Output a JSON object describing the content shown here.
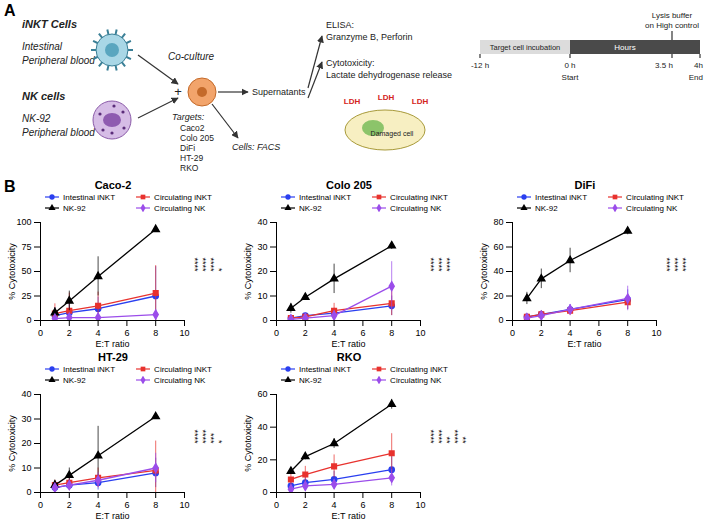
{
  "panel_a": {
    "label": "A",
    "inkt": {
      "title": "iNKT Cells",
      "sources": [
        "Intestinal",
        "Peripheral blood"
      ]
    },
    "nk": {
      "title": "NK cells",
      "sources": [
        "NK-92",
        "Peripheral blood"
      ]
    },
    "coculture": "Co-culture",
    "plus": "+",
    "targets_title": "Targets:",
    "targets": [
      "Caco2",
      "Colo 205",
      "DiFi",
      "HT-29",
      "RKO"
    ],
    "cells": "Cells: FACS",
    "supernatants": "Supernatants",
    "elisa": [
      "ELISA:",
      "Granzyme B, Perforin"
    ],
    "cytotoxicity": [
      "Cytotoxicity:",
      "Lactate dehydrogenase release"
    ],
    "ldh": [
      "LDH",
      "LDH",
      "LDH"
    ],
    "damaged": "Damaged cell",
    "timeline": {
      "incubation": "Target cell incubation",
      "start": "Start",
      "lysis": [
        "Lysis buffer",
        "on High control"
      ],
      "end": "End",
      "axis_label": "Hours",
      "times": [
        "-12 h",
        "0 h",
        "3.5 h",
        "4h"
      ]
    }
  },
  "panel_b_label": "B",
  "chart_data": [
    {
      "type": "line",
      "title": "Caco-2",
      "x_label": "E:T ratio",
      "y_label": "% Cytotoxicity",
      "x": [
        1,
        2,
        4,
        8
      ],
      "xlim": [
        0,
        10
      ],
      "xticks": [
        0,
        2,
        4,
        6,
        8,
        10
      ],
      "ylim": [
        0,
        100
      ],
      "yticks": [
        0,
        25,
        50,
        75,
        100
      ],
      "legend": "top-left",
      "series": [
        {
          "name": "Intestinal iNKT",
          "color": "#2a3ff0",
          "marker": "circle",
          "values": [
            5,
            8,
            12,
            25
          ],
          "errors": [
            8,
            15,
            12,
            30
          ]
        },
        {
          "name": "Circulating iNKT",
          "color": "#e8322e",
          "marker": "square",
          "values": [
            7,
            10,
            15,
            28
          ],
          "errors": [
            10,
            18,
            14,
            28
          ]
        },
        {
          "name": "NK-92",
          "color": "#000000",
          "marker": "triangle",
          "values": [
            8,
            20,
            45,
            93
          ],
          "errors": [
            5,
            10,
            20,
            2
          ]
        },
        {
          "name": "Circulating NK",
          "color": "#9b4dea",
          "marker": "diamond",
          "values": [
            2,
            3,
            3,
            6
          ],
          "errors": [
            2,
            3,
            3,
            5
          ]
        }
      ],
      "significance": [
        "****",
        "****",
        "****",
        "*"
      ]
    },
    {
      "type": "line",
      "title": "Colo 205",
      "x_label": "E:T ratio",
      "y_label": "% Cytotoxicity",
      "x": [
        1,
        2,
        4,
        8
      ],
      "xlim": [
        0,
        10
      ],
      "xticks": [
        0,
        2,
        4,
        6,
        8,
        10
      ],
      "ylim": [
        0,
        40
      ],
      "yticks": [
        0,
        10,
        20,
        30,
        40
      ],
      "legend": "top-left",
      "series": [
        {
          "name": "Intestinal iNKT",
          "color": "#2a3ff0",
          "marker": "circle",
          "values": [
            1,
            2,
            3,
            6
          ],
          "errors": [
            1,
            1,
            2,
            4
          ]
        },
        {
          "name": "Circulating iNKT",
          "color": "#e8322e",
          "marker": "square",
          "values": [
            1,
            1.5,
            4,
            7
          ],
          "errors": [
            1,
            1,
            3,
            5
          ]
        },
        {
          "name": "NK-92",
          "color": "#000000",
          "marker": "triangle",
          "values": [
            5,
            9.5,
            17,
            30.5
          ],
          "errors": [
            2,
            1,
            6,
            1.5
          ]
        },
        {
          "name": "Circulating NK",
          "color": "#9b4dea",
          "marker": "diamond",
          "values": [
            0.5,
            1,
            2,
            14
          ],
          "errors": [
            0.5,
            1,
            2,
            10
          ]
        }
      ],
      "significance": [
        "****",
        "****",
        "****"
      ]
    },
    {
      "type": "line",
      "title": "DiFi",
      "x_label": "E:T ratio",
      "y_label": "% Cytotoxicity",
      "x": [
        1,
        2,
        4,
        8
      ],
      "xlim": [
        0,
        10
      ],
      "xticks": [
        0,
        2,
        4,
        6,
        8,
        10
      ],
      "ylim": [
        0,
        80
      ],
      "yticks": [
        0,
        20,
        40,
        60,
        80
      ],
      "legend": "top-left",
      "series": [
        {
          "name": "Intestinal iNKT",
          "color": "#2a3ff0",
          "marker": "circle",
          "values": [
            3,
            5,
            9,
            17
          ],
          "errors": [
            2,
            3,
            4,
            8
          ]
        },
        {
          "name": "Circulating iNKT",
          "color": "#e8322e",
          "marker": "square",
          "values": [
            3,
            5,
            8,
            15
          ],
          "errors": [
            2,
            3,
            4,
            6
          ]
        },
        {
          "name": "NK-92",
          "color": "#000000",
          "marker": "triangle",
          "values": [
            18,
            34,
            49,
            73
          ],
          "errors": [
            5,
            8,
            10,
            3
          ]
        },
        {
          "name": "Circulating NK",
          "color": "#9b4dea",
          "marker": "diamond",
          "values": [
            2,
            4,
            9,
            18
          ],
          "errors": [
            2,
            3,
            4,
            10
          ]
        }
      ],
      "significance": [
        "****",
        "****",
        "****"
      ]
    },
    {
      "type": "line",
      "title": "HT-29",
      "x_label": "E:T ratio",
      "y_label": "% Cytotoxicity",
      "x": [
        1,
        2,
        4,
        8
      ],
      "xlim": [
        0,
        10
      ],
      "xticks": [
        0,
        2,
        4,
        6,
        8,
        10
      ],
      "ylim": [
        0,
        40
      ],
      "yticks": [
        0,
        10,
        20,
        30,
        40
      ],
      "legend": "top-left",
      "series": [
        {
          "name": "Intestinal iNKT",
          "color": "#2a3ff0",
          "marker": "circle",
          "values": [
            2,
            3,
            4,
            8
          ],
          "errors": [
            1,
            2,
            3,
            6
          ]
        },
        {
          "name": "Circulating iNKT",
          "color": "#e8322e",
          "marker": "square",
          "values": [
            3,
            4,
            6,
            9
          ],
          "errors": [
            2,
            3,
            4,
            12
          ]
        },
        {
          "name": "NK-92",
          "color": "#000000",
          "marker": "triangle",
          "values": [
            3,
            7,
            15,
            31
          ],
          "errors": [
            2,
            3,
            12,
            1
          ]
        },
        {
          "name": "Circulating NK",
          "color": "#9b4dea",
          "marker": "diamond",
          "values": [
            2,
            3,
            5,
            10
          ],
          "errors": [
            1,
            2,
            3,
            6
          ]
        }
      ],
      "significance": [
        "****",
        "****",
        "***",
        "*"
      ]
    },
    {
      "type": "line",
      "title": "RKO",
      "x_label": "E:T ratio",
      "y_label": "% Cytotoxicity",
      "x": [
        1,
        2,
        4,
        8
      ],
      "xlim": [
        0,
        10
      ],
      "xticks": [
        0,
        2,
        4,
        6,
        8,
        10
      ],
      "ylim": [
        0,
        60
      ],
      "yticks": [
        0,
        20,
        40,
        60
      ],
      "legend": "top-left",
      "series": [
        {
          "name": "Intestinal iNKT",
          "color": "#2a3ff0",
          "marker": "circle",
          "values": [
            4,
            6,
            8,
            14
          ],
          "errors": [
            3,
            4,
            5,
            8
          ]
        },
        {
          "name": "Circulating iNKT",
          "color": "#e8322e",
          "marker": "square",
          "values": [
            8,
            11,
            16,
            24
          ],
          "errors": [
            4,
            5,
            7,
            12
          ]
        },
        {
          "name": "NK-92",
          "color": "#000000",
          "marker": "triangle",
          "values": [
            13,
            22,
            30,
            54
          ],
          "errors": [
            2,
            2,
            3,
            3
          ]
        },
        {
          "name": "Circulating NK",
          "color": "#9b4dea",
          "marker": "diamond",
          "values": [
            2,
            4,
            5,
            9
          ],
          "errors": [
            2,
            2,
            3,
            5
          ]
        }
      ],
      "significance": [
        "****",
        "****",
        "**",
        "****",
        "**"
      ]
    }
  ]
}
